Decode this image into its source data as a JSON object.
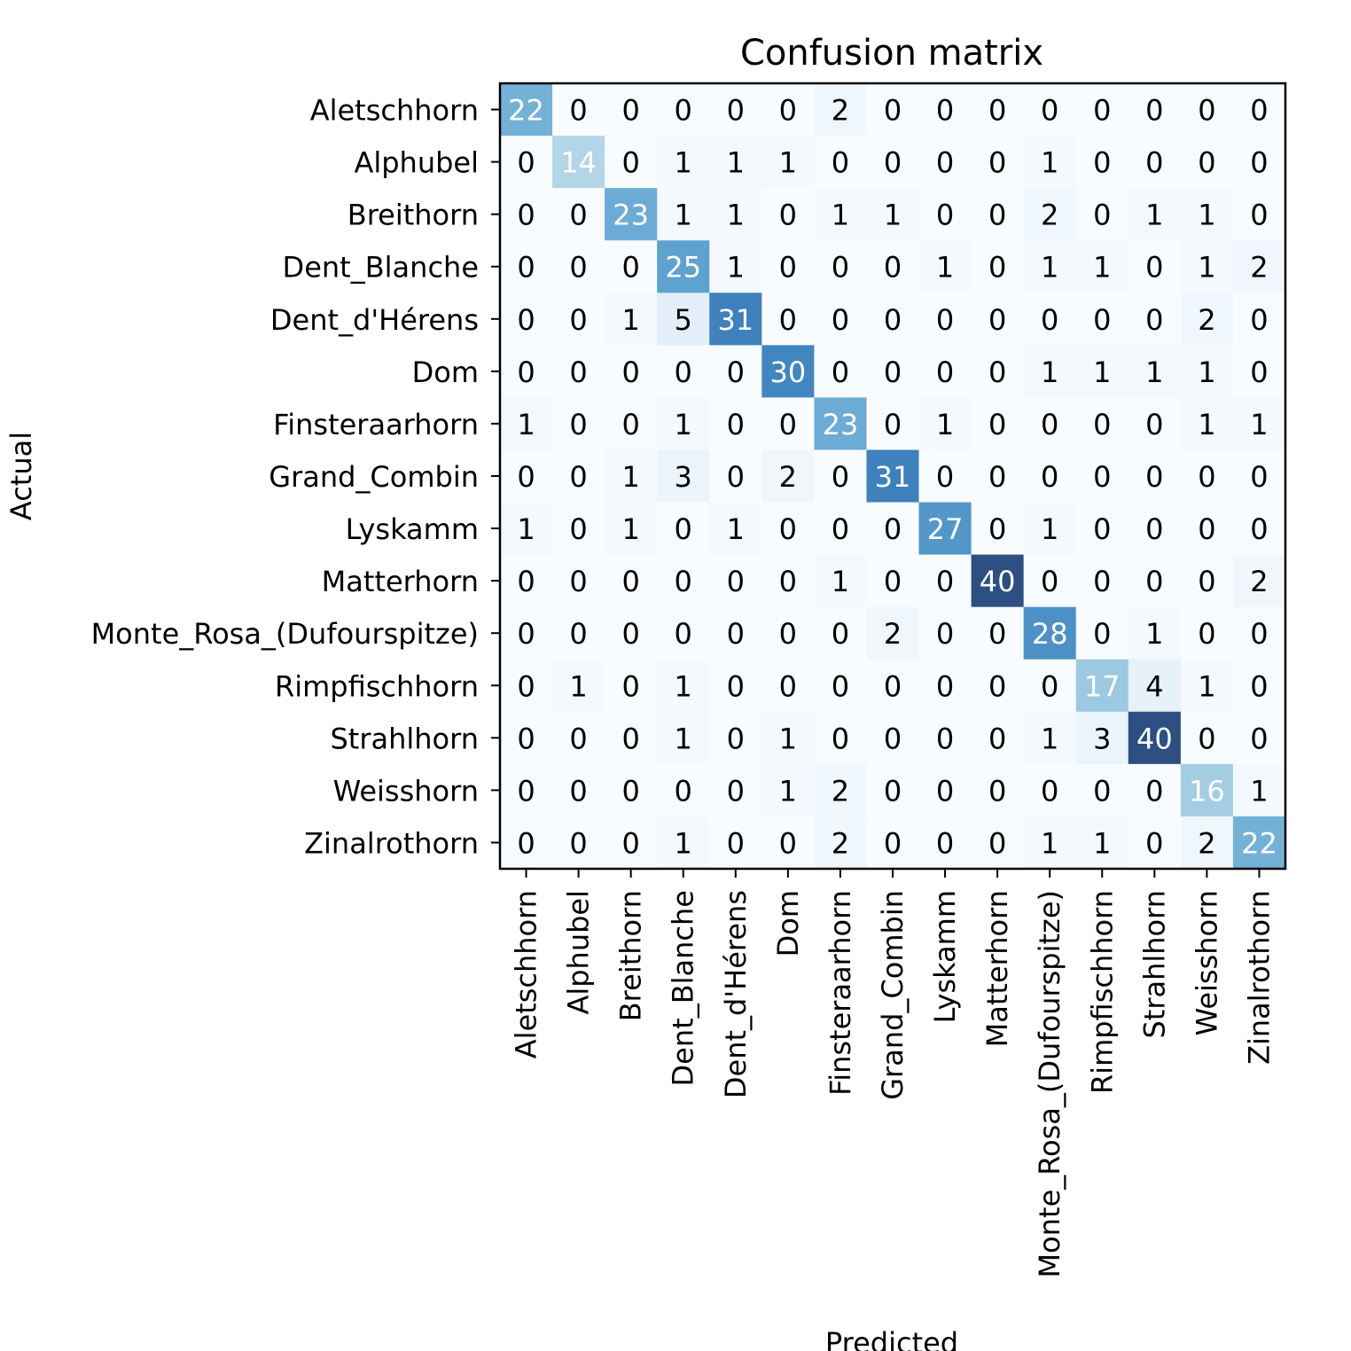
{
  "chart_data": {
    "type": "heatmap",
    "title": "Confusion matrix",
    "xlabel": "Predicted",
    "ylabel": "Actual",
    "labels": [
      "Aletschhorn",
      "Alphubel",
      "Breithorn",
      "Dent_Blanche",
      "Dent_d'Hérens",
      "Dom",
      "Finsteraarhorn",
      "Grand_Combin",
      "Lyskamm",
      "Matterhorn",
      "Monte_Rosa_(Dufourspitze)",
      "Rimpfischhorn",
      "Strahlhorn",
      "Weisshorn",
      "Zinalrothorn"
    ],
    "matrix": [
      [
        22,
        0,
        0,
        0,
        0,
        0,
        2,
        0,
        0,
        0,
        0,
        0,
        0,
        0,
        0
      ],
      [
        0,
        14,
        0,
        1,
        1,
        1,
        0,
        0,
        0,
        0,
        1,
        0,
        0,
        0,
        0
      ],
      [
        0,
        0,
        23,
        1,
        1,
        0,
        1,
        1,
        0,
        0,
        2,
        0,
        1,
        1,
        0
      ],
      [
        0,
        0,
        0,
        25,
        1,
        0,
        0,
        0,
        1,
        0,
        1,
        1,
        0,
        1,
        2
      ],
      [
        0,
        0,
        1,
        5,
        31,
        0,
        0,
        0,
        0,
        0,
        0,
        0,
        0,
        2,
        0
      ],
      [
        0,
        0,
        0,
        0,
        0,
        30,
        0,
        0,
        0,
        0,
        1,
        1,
        1,
        1,
        0
      ],
      [
        1,
        0,
        0,
        1,
        0,
        0,
        23,
        0,
        1,
        0,
        0,
        0,
        0,
        1,
        1
      ],
      [
        0,
        0,
        1,
        3,
        0,
        2,
        0,
        31,
        0,
        0,
        0,
        0,
        0,
        0,
        0
      ],
      [
        1,
        0,
        1,
        0,
        1,
        0,
        0,
        0,
        27,
        0,
        1,
        0,
        0,
        0,
        0
      ],
      [
        0,
        0,
        0,
        0,
        0,
        0,
        1,
        0,
        0,
        40,
        0,
        0,
        0,
        0,
        2
      ],
      [
        0,
        0,
        0,
        0,
        0,
        0,
        0,
        2,
        0,
        0,
        28,
        0,
        1,
        0,
        0
      ],
      [
        0,
        1,
        0,
        1,
        0,
        0,
        0,
        0,
        0,
        0,
        0,
        17,
        4,
        1,
        0
      ],
      [
        0,
        0,
        0,
        1,
        0,
        1,
        0,
        0,
        0,
        0,
        1,
        3,
        40,
        0,
        0
      ],
      [
        0,
        0,
        0,
        0,
        0,
        1,
        2,
        0,
        0,
        0,
        0,
        0,
        0,
        16,
        1
      ],
      [
        0,
        0,
        0,
        1,
        0,
        0,
        2,
        0,
        0,
        0,
        1,
        1,
        0,
        2,
        22
      ]
    ],
    "colormap": "Blues",
    "value_range": [
      0,
      40
    ],
    "grid": false
  }
}
